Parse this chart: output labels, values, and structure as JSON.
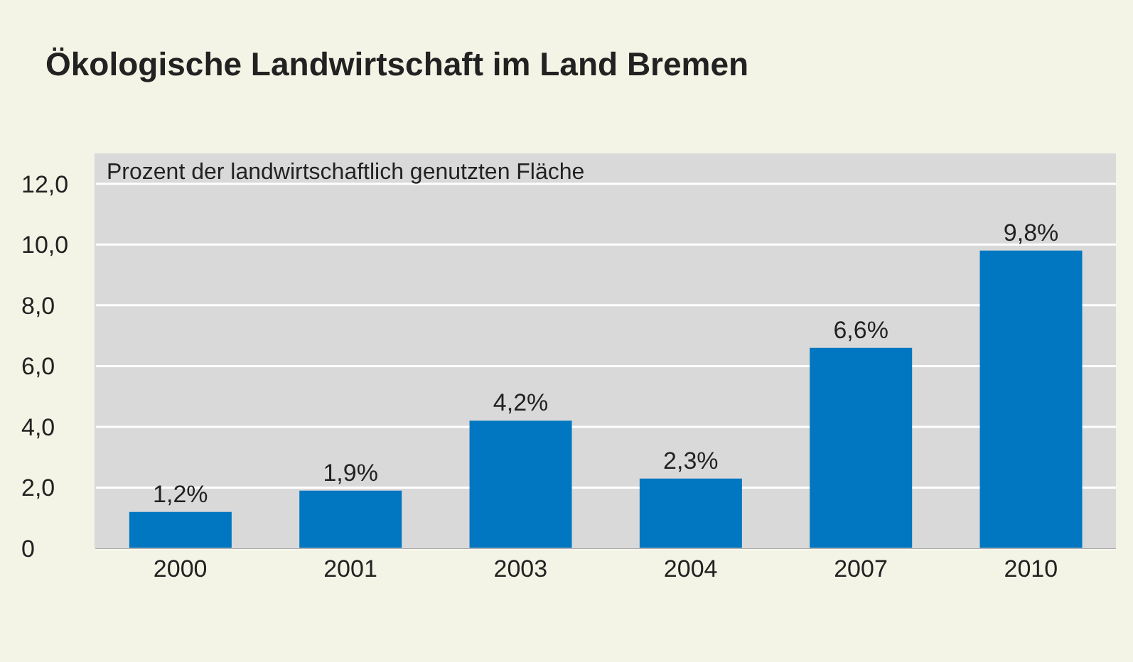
{
  "chart_data": {
    "type": "bar",
    "title": "Ökologische Landwirtschaft im Land Bremen",
    "ylabel": "Prozent der landwirtschaftlich genutzten Fläche",
    "categories": [
      "2000",
      "2001",
      "2003",
      "2004",
      "2007",
      "2010"
    ],
    "values": [
      1.2,
      1.9,
      4.2,
      2.3,
      6.6,
      9.8
    ],
    "value_labels": [
      "1,2%",
      "1,9%",
      "4,2%",
      "2,3%",
      "6,6%",
      "9,8%"
    ],
    "color": "#0077c0",
    "ylim": [
      0,
      13
    ],
    "yticks": [
      {
        "value": 0,
        "label": "0"
      },
      {
        "value": 2,
        "label": "2,0"
      },
      {
        "value": 4,
        "label": "4,0"
      },
      {
        "value": 6,
        "label": "6,0"
      },
      {
        "value": 8,
        "label": "8,0"
      },
      {
        "value": 10,
        "label": "10,0"
      },
      {
        "value": 12,
        "label": "12,0"
      }
    ],
    "grid": "y",
    "legend": false
  }
}
